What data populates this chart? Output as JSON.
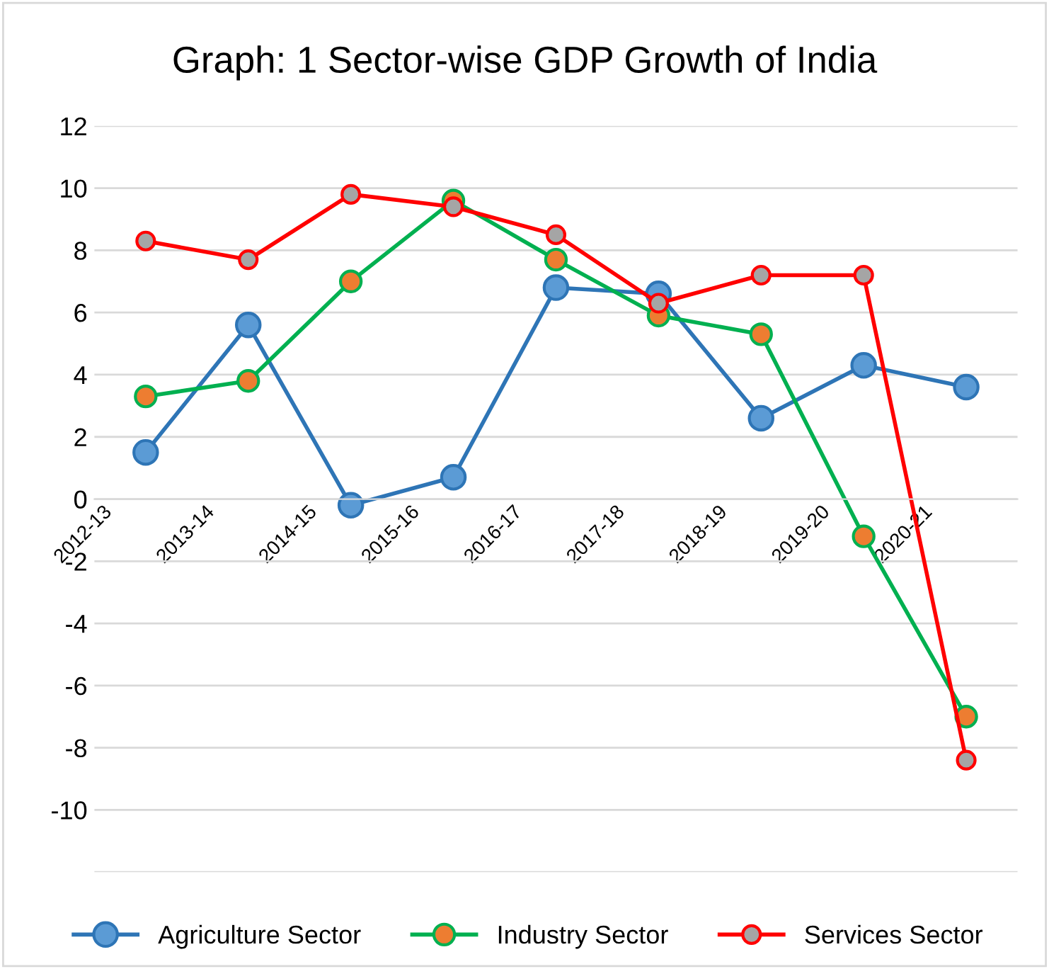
{
  "chart_data": {
    "type": "line",
    "title": "Graph: 1 Sector-wise GDP Growth of India",
    "categories": [
      "2012-13",
      "2013-14",
      "2014-15",
      "2015-16",
      "2016-17",
      "2017-18",
      "2018-19",
      "2019-20",
      "2020-21"
    ],
    "series": [
      {
        "name": "Agriculture Sector",
        "color": "#2e75b6",
        "values": [
          1.5,
          5.6,
          -0.2,
          0.7,
          6.8,
          6.6,
          2.6,
          4.3,
          3.6
        ]
      },
      {
        "name": "Industry Sector",
        "color": "#00b050",
        "values": [
          3.3,
          3.8,
          7.0,
          9.6,
          7.7,
          5.9,
          5.3,
          -1.2,
          -7.0
        ]
      },
      {
        "name": "Services Sector",
        "color": "#ff0000",
        "values": [
          8.3,
          7.7,
          9.8,
          9.4,
          8.5,
          6.3,
          7.2,
          7.2,
          -8.4
        ]
      }
    ],
    "ylim": [
      -12,
      12
    ],
    "yticks": [
      {
        "value": -12,
        "label": null
      },
      -10,
      -8,
      -6,
      -4,
      -2,
      0,
      2,
      4,
      6,
      8,
      10,
      12
    ],
    "grid": "y",
    "legend": "bottom",
    "marker": "circle",
    "line_style": "solid"
  }
}
